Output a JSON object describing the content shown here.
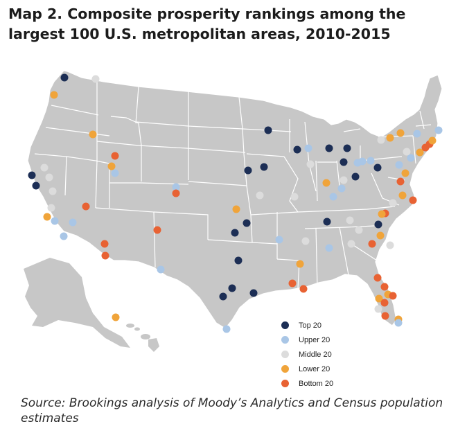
{
  "title": "Map 2. Composite prosperity rankings among the largest 100 U.S. metropolitan areas, 2010-2015",
  "source": "Source: Brookings analysis of Moody’s Analytics and Census population estimates",
  "legend": [
    {
      "label": "Top 20",
      "color": "#1c2e55"
    },
    {
      "label": "Upper 20",
      "color": "#a9c6e6"
    },
    {
      "label": "Middle 20",
      "color": "#dcdcdc"
    },
    {
      "label": "Lower 20",
      "color": "#f0a43a"
    },
    {
      "label": "Bottom 20",
      "color": "#e86233"
    }
  ],
  "map_colors": {
    "land": "#c7c7c7",
    "border": "#ffffff"
  }
}
